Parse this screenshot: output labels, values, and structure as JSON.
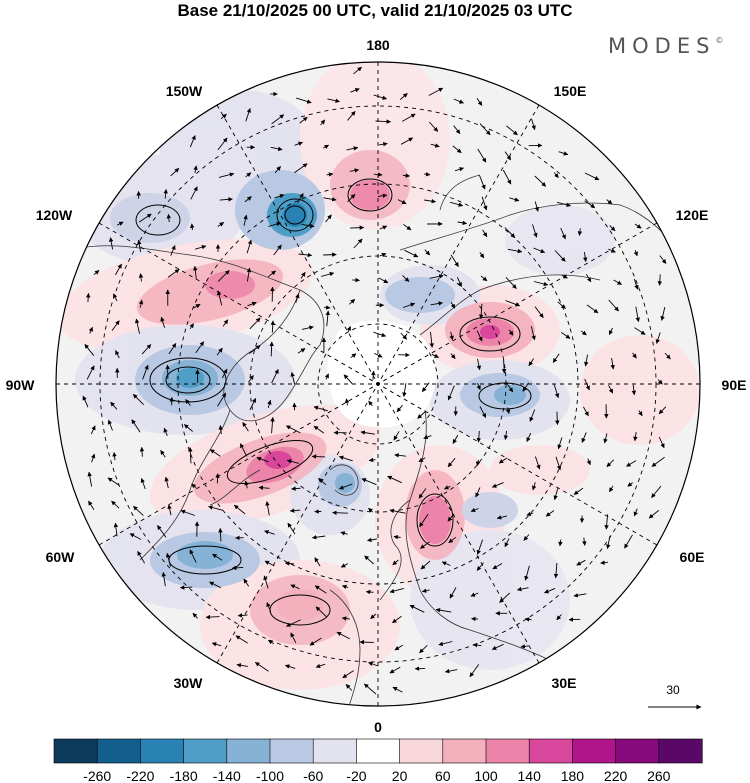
{
  "title": "Base 21/10/2025 00 UTC, valid 21/10/2025 03 UTC",
  "brand": {
    "name": "MODES",
    "mark": "©"
  },
  "longitude_labels": {
    "top": "180",
    "bottom": "0",
    "left": "90W",
    "right": "90E",
    "upper_left": "150W",
    "upper_right": "150E",
    "mid_upper_left": "120W",
    "mid_upper_right": "120E",
    "mid_lower_left": "60W",
    "mid_lower_right": "60E",
    "lower_left": "30W",
    "lower_right": "30E"
  },
  "vector_scale": {
    "value": "30"
  },
  "colorbar": {
    "labels": [
      "-260",
      "-220",
      "-180",
      "-140",
      "-100",
      "-60",
      "-20",
      "20",
      "60",
      "100",
      "140",
      "180",
      "220",
      "260"
    ],
    "colors": [
      "#0c3b5b",
      "#125f8e",
      "#2a82b4",
      "#4f9ec8",
      "#86b2d6",
      "#b9c8e3",
      "#e3e2ef",
      "#ffffff",
      "#f7d7d9",
      "#f3b0bd",
      "#ec83a8",
      "#d8479b",
      "#b0168a",
      "#860a7c",
      "#5a0867"
    ]
  },
  "anomalies": [
    {
      "name": "pos-north-pacific",
      "sign": "positive",
      "level": 2
    },
    {
      "name": "neg-aleutian",
      "sign": "negative",
      "level": 3
    },
    {
      "name": "neg-bering-west",
      "sign": "negative",
      "level": 1
    },
    {
      "name": "pos-alaska",
      "sign": "positive",
      "level": 2
    },
    {
      "name": "neg-canada",
      "sign": "negative",
      "level": 3
    },
    {
      "name": "pos-east-canada",
      "sign": "positive",
      "level": 3
    },
    {
      "name": "neg-labrador",
      "sign": "negative",
      "level": 2
    },
    {
      "name": "neg-atlantic",
      "sign": "negative",
      "level": 2
    },
    {
      "name": "pos-mid-atlantic",
      "sign": "positive",
      "level": 2
    },
    {
      "name": "pos-scandinavia",
      "sign": "positive",
      "level": 3
    },
    {
      "name": "neg-europe",
      "sign": "negative",
      "level": 1
    },
    {
      "name": "neg-west-siberia",
      "sign": "negative",
      "level": 2
    },
    {
      "name": "pos-siberia",
      "sign": "positive",
      "level": 3
    },
    {
      "name": "neg-east-siberia",
      "sign": "negative",
      "level": 2
    },
    {
      "name": "pos-central-asia",
      "sign": "positive",
      "level": 1
    }
  ]
}
